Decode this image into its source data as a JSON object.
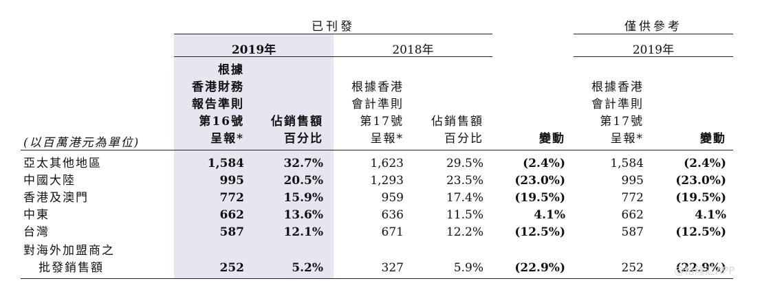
{
  "header": {
    "published_label": "已刊發",
    "reference_label": "僅供參考",
    "year_2019": "2019年",
    "year_2018": "2018年",
    "year_2019_ref": "2019年"
  },
  "columns": {
    "region_unit": "(以百萬港元為單位)",
    "reported_hkfrs16": [
      "根據",
      "香港財務",
      "報告準則",
      "第16號",
      "呈報*"
    ],
    "pct_sales_2019": [
      "佔銷售額",
      "百分比"
    ],
    "reported_hkas17_2018": [
      "根據香港",
      "會計準則",
      "第17號",
      "呈報*"
    ],
    "pct_sales_2018": [
      "佔銷售額",
      "百分比"
    ],
    "change_label": "變動",
    "reported_hkas17_2019": [
      "根據香港",
      "會計準則",
      "第17號",
      "呈報*"
    ],
    "change_label_ref": "變動"
  },
  "rows": [
    {
      "region": "亞太其他地區",
      "v2019": "1,584",
      "p2019": "32.7%",
      "v2018": "1,623",
      "p2018": "29.5%",
      "chg": "(2.4%)",
      "ref": "1,584",
      "refchg": "(2.4%)"
    },
    {
      "region": "中國大陸",
      "v2019": "995",
      "p2019": "20.5%",
      "v2018": "1,293",
      "p2018": "23.5%",
      "chg": "(23.0%)",
      "ref": "995",
      "refchg": "(23.0%)"
    },
    {
      "region": "香港及澳門",
      "v2019": "772",
      "p2019": "15.9%",
      "v2018": "959",
      "p2018": "17.4%",
      "chg": "(19.5%)",
      "ref": "772",
      "refchg": "(19.5%)"
    },
    {
      "region": "中東",
      "v2019": "662",
      "p2019": "13.6%",
      "v2018": "636",
      "p2018": "11.5%",
      "chg": "4.1%",
      "ref": "662",
      "refchg": "4.1%"
    },
    {
      "region": "台灣",
      "v2019": "587",
      "p2019": "12.1%",
      "v2018": "671",
      "p2018": "12.2%",
      "chg": "(12.5%)",
      "ref": "587",
      "refchg": "(12.5%)"
    }
  ],
  "last_row": {
    "region_line1": "對海外加盟商之",
    "region_line2": "批發銷售額",
    "v2019": "252",
    "p2019": "5.2%",
    "v2018": "327",
    "p2018": "5.9%",
    "chg": "(22.9%)",
    "ref": "252",
    "refchg": "(22.9%)"
  },
  "watermark": "@格隆汇APP"
}
